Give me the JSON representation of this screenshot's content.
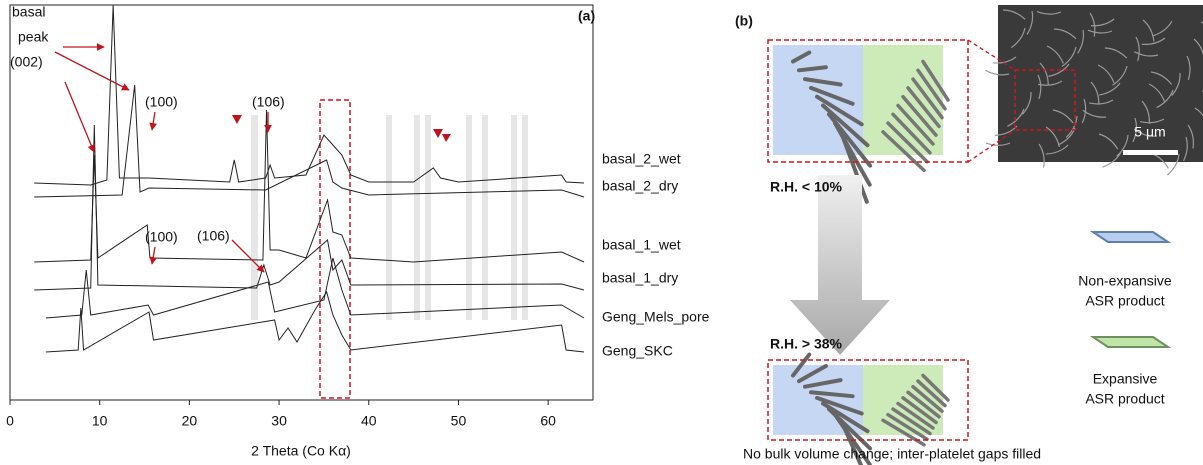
{
  "chart_data": {
    "type": "line",
    "xlabel": "2 Theta (Co Kα)",
    "xlim": [
      0,
      65
    ],
    "xticks": [
      0,
      10,
      20,
      30,
      40,
      50,
      60
    ],
    "ylim": [
      0,
      395
    ],
    "panel_label": "(a)",
    "annotations": {
      "basal_peak": [
        "basal",
        "peak",
        "(002)"
      ],
      "peak_100_top": "(100)",
      "peak_106_top": "(106)",
      "peak_100_mid": "(100)",
      "peak_106_mid": "(106)"
    },
    "series": [
      {
        "name": "basal_2_wet",
        "color": "#222222",
        "x": [
          2.7,
          9,
          10.8,
          11.5,
          12.2,
          15.5,
          24.5,
          25,
          25.5,
          28.5,
          29,
          29.5,
          33,
          35,
          36,
          37,
          38,
          40,
          45,
          47.2,
          48,
          50,
          61.5,
          62,
          64
        ],
        "values": [
          217,
          215,
          220,
          395,
          222,
          222,
          218,
          240,
          218,
          222,
          235,
          222,
          225,
          265,
          255,
          245,
          225,
          218,
          218,
          232,
          222,
          218,
          225,
          218,
          217
        ]
      },
      {
        "name": "basal_2_dry",
        "color": "#222222",
        "x": [
          2.7,
          12.5,
          13.9,
          14.5,
          15.5,
          28.5,
          35.3,
          36,
          37,
          40,
          61.5,
          64
        ],
        "values": [
          203,
          205,
          315,
          208,
          212,
          210,
          240,
          218,
          212,
          205,
          210,
          203
        ]
      },
      {
        "name": "basal_1_wet",
        "color": "#222222",
        "x": [
          2.7,
          9,
          9.4,
          9.8,
          15.3,
          15.6,
          28.2,
          28.6,
          29,
          30,
          33,
          35.4,
          36,
          37,
          38,
          45,
          61.5,
          64
        ],
        "values": [
          138,
          140,
          245,
          142,
          175,
          142,
          140,
          290,
          150,
          150,
          142,
          200,
          168,
          165,
          142,
          138,
          148,
          138
        ]
      },
      {
        "name": "basal_1_dry",
        "color": "#222222",
        "x": [
          2.7,
          9,
          9.4,
          9.8,
          27.5,
          28.3,
          29,
          30,
          35.4,
          36,
          37,
          38,
          61.5,
          64
        ],
        "values": [
          110,
          112,
          275,
          115,
          112,
          135,
          115,
          118,
          160,
          130,
          140,
          115,
          116,
          110
        ]
      },
      {
        "name": "Geng_Mels_pore",
        "color": "#222222",
        "x": [
          4,
          8,
          8.5,
          9,
          15.4,
          16,
          28.8,
          29.5,
          35,
          36,
          37,
          38,
          61.5,
          64
        ],
        "values": [
          82,
          85,
          130,
          85,
          95,
          85,
          118,
          88,
          100,
          142,
          110,
          85,
          95,
          82
        ]
      },
      {
        "name": "Geng_SKC",
        "color": "#222222",
        "x": [
          4,
          7.6,
          7.9,
          8.2,
          15.5,
          16,
          29.5,
          30,
          31,
          32,
          34,
          35.3,
          36,
          37,
          38,
          61.5,
          62,
          64
        ],
        "values": [
          48,
          50,
          92,
          50,
          88,
          60,
          80,
          60,
          72,
          58,
          90,
          108,
          85,
          65,
          50,
          75,
          50,
          48
        ]
      }
    ]
  },
  "diagram": {
    "panel_label": "(b)",
    "rh_low": "R.H. < 10%",
    "rh_high": "R.H. > 38%",
    "scale_bar": "5 μm",
    "legend": [
      {
        "lines": [
          "Non-expansive",
          "ASR product"
        ]
      },
      {
        "lines": [
          "Expansive",
          "ASR product"
        ]
      }
    ],
    "caption": "No bulk volume change; inter-platelet gaps filled"
  }
}
